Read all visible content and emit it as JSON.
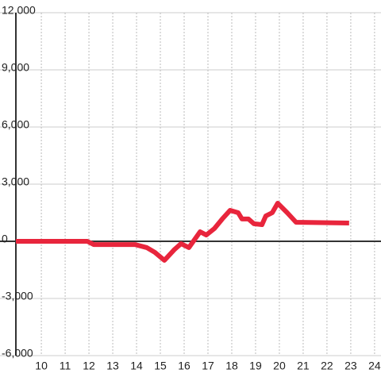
{
  "chart_data": {
    "type": "line",
    "x": [
      8.93,
      11.93,
      12.2,
      13.93,
      14.43,
      14.77,
      15.17,
      15.6,
      15.87,
      16.2,
      16.67,
      16.93,
      17.27,
      17.6,
      17.93,
      18.27,
      18.43,
      18.7,
      18.93,
      19.27,
      19.43,
      19.7,
      19.93,
      20.33,
      20.7,
      22.93
    ],
    "series": [
      {
        "color": "#e8253c",
        "values": [
          0,
          0,
          -170,
          -170,
          -330,
          -580,
          -1000,
          -420,
          -125,
          -330,
          500,
          330,
          670,
          1170,
          1625,
          1500,
          1170,
          1170,
          920,
          875,
          1330,
          1500,
          2000,
          1500,
          1000,
          960
        ]
      }
    ],
    "xlim": [
      8.93,
      24.27
    ],
    "xticks": [
      10,
      11,
      12,
      13,
      14,
      15,
      16,
      17,
      18,
      19,
      20,
      21,
      22,
      23,
      24
    ],
    "ylim": [
      -6000,
      12000
    ],
    "yticks": [
      {
        "value": -6000,
        "label": "-6,000"
      },
      {
        "value": -3000,
        "label": "-3,000"
      },
      0,
      {
        "value": 3000,
        "label": "3,000"
      },
      {
        "value": 6000,
        "label": "6,000"
      },
      {
        "value": 9000,
        "label": "9,000"
      },
      {
        "value": 12000,
        "label": "12,000"
      }
    ],
    "grid": true
  }
}
